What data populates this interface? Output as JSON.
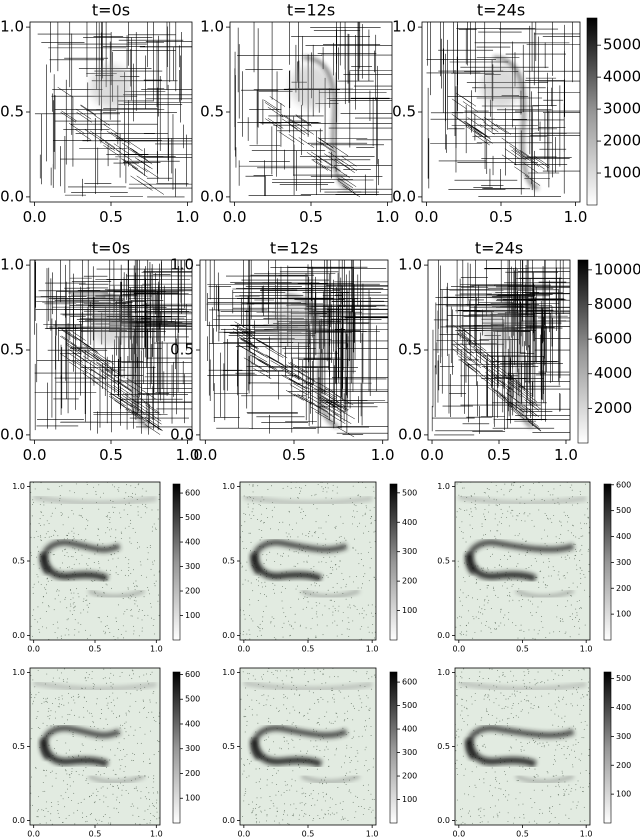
{
  "chart_data": [
    {
      "type": "image",
      "title": "t=0s",
      "xlim": [
        -0.03,
        1.03
      ],
      "ylim": [
        -0.03,
        1.03
      ],
      "xticks": [
        {
          "value": 0,
          "label": "0.0"
        },
        {
          "value": 0.5,
          "label": "0.5"
        },
        {
          "value": 1,
          "label": "1.0"
        }
      ],
      "yticks": [
        {
          "value": 0,
          "label": "0.0"
        },
        {
          "value": 0.5,
          "label": "0.5"
        },
        {
          "value": 1,
          "label": "1.0"
        }
      ]
    },
    {
      "type": "image",
      "title": "t=12s",
      "xlim": [
        -0.03,
        1.03
      ],
      "ylim": [
        -0.03,
        1.03
      ],
      "xticks": [
        {
          "value": 0,
          "label": "0.0"
        },
        {
          "value": 0.5,
          "label": "0.5"
        },
        {
          "value": 1,
          "label": "1.0"
        }
      ],
      "yticks": [
        {
          "value": 0,
          "label": "0.0"
        },
        {
          "value": 0.5,
          "label": "0.5"
        },
        {
          "value": 1,
          "label": "1.0"
        }
      ]
    },
    {
      "type": "image",
      "title": "t=24s",
      "xlim": [
        -0.03,
        1.03
      ],
      "ylim": [
        -0.03,
        1.03
      ],
      "xticks": [
        {
          "value": 0,
          "label": "0.0"
        },
        {
          "value": 0.5,
          "label": "0.5"
        },
        {
          "value": 1,
          "label": "1.0"
        }
      ],
      "yticks": [
        {
          "value": 0,
          "label": "0.0"
        },
        {
          "value": 0.5,
          "label": "0.5"
        },
        {
          "value": 1,
          "label": "1.0"
        }
      ],
      "colorbar": {
        "clim": [
          0,
          5850
        ],
        "cticks": [
          1000,
          2000,
          3000,
          4000,
          5000
        ]
      }
    },
    {
      "type": "image",
      "title": "t=0s",
      "xlim": [
        -0.03,
        1.03
      ],
      "ylim": [
        -0.03,
        1.03
      ],
      "xticks": [
        {
          "value": 0,
          "label": "0.0"
        },
        {
          "value": 0.5,
          "label": "0.5"
        },
        {
          "value": 1,
          "label": "1.0"
        }
      ],
      "yticks": [
        {
          "value": 0,
          "label": "0.0"
        },
        {
          "value": 0.5,
          "label": "0.5"
        },
        {
          "value": 1,
          "label": "1.0"
        }
      ]
    },
    {
      "type": "image",
      "title": "t=12s",
      "xlim": [
        -0.03,
        1.03
      ],
      "ylim": [
        -0.03,
        1.03
      ],
      "xticks": [
        {
          "value": 0,
          "label": "0.0"
        },
        {
          "value": 0.5,
          "label": "0.5"
        },
        {
          "value": 1,
          "label": "1.0"
        }
      ],
      "yticks": [
        {
          "value": 0,
          "label": "0.0"
        },
        {
          "value": 0.5,
          "label": "0.5"
        },
        {
          "value": 1,
          "label": "1.0"
        }
      ]
    },
    {
      "type": "image",
      "title": "t=24s",
      "xlim": [
        -0.03,
        1.03
      ],
      "ylim": [
        -0.03,
        1.03
      ],
      "xticks": [
        {
          "value": 0,
          "label": "0.0"
        },
        {
          "value": 0.5,
          "label": "0.5"
        },
        {
          "value": 1,
          "label": "1.0"
        }
      ],
      "yticks": [
        {
          "value": 0,
          "label": "0.0"
        },
        {
          "value": 0.5,
          "label": "0.5"
        },
        {
          "value": 1,
          "label": "1.0"
        }
      ],
      "colorbar": {
        "clim": [
          0,
          10570
        ],
        "cticks": [
          2000,
          4000,
          6000,
          8000,
          10000
        ]
      }
    },
    {
      "type": "image",
      "xlim": [
        -0.03,
        1.03
      ],
      "ylim": [
        -0.03,
        1.03
      ],
      "xticks": [
        {
          "value": 0,
          "label": "0.0"
        },
        {
          "value": 0.5,
          "label": "0.5"
        },
        {
          "value": 1,
          "label": "1.0"
        }
      ],
      "yticks": [
        {
          "value": 0,
          "label": "0.0"
        },
        {
          "value": 0.5,
          "label": "0.5"
        },
        {
          "value": 1,
          "label": "1.0"
        }
      ],
      "colorbar": {
        "clim": [
          0,
          637
        ],
        "cticks": [
          100,
          200,
          300,
          400,
          500,
          600
        ]
      }
    },
    {
      "type": "image",
      "xlim": [
        -0.03,
        1.03
      ],
      "ylim": [
        -0.03,
        1.03
      ],
      "xticks": [
        {
          "value": 0,
          "label": "0.0"
        },
        {
          "value": 0.5,
          "label": "0.5"
        },
        {
          "value": 1,
          "label": "1.0"
        }
      ],
      "yticks": [
        {
          "value": 0,
          "label": "0.0"
        },
        {
          "value": 0.5,
          "label": "0.5"
        },
        {
          "value": 1,
          "label": "1.0"
        }
      ],
      "colorbar": {
        "clim": [
          0,
          530
        ],
        "cticks": [
          100,
          200,
          300,
          400,
          500
        ]
      }
    },
    {
      "type": "image",
      "xlim": [
        -0.03,
        1.03
      ],
      "ylim": [
        -0.03,
        1.03
      ],
      "xticks": [
        {
          "value": 0,
          "label": "0.0"
        },
        {
          "value": 0.5,
          "label": "0.5"
        },
        {
          "value": 1,
          "label": "1.0"
        }
      ],
      "yticks": [
        {
          "value": 0,
          "label": "0.0"
        },
        {
          "value": 0.5,
          "label": "0.5"
        },
        {
          "value": 1,
          "label": "1.0"
        }
      ],
      "colorbar": {
        "clim": [
          0,
          603
        ],
        "cticks": [
          100,
          200,
          300,
          400,
          500,
          600
        ]
      }
    },
    {
      "type": "image",
      "xlim": [
        -0.03,
        1.03
      ],
      "ylim": [
        -0.03,
        1.03
      ],
      "xticks": [
        {
          "value": 0,
          "label": "0.0"
        },
        {
          "value": 0.5,
          "label": "0.5"
        },
        {
          "value": 1,
          "label": "1.0"
        }
      ],
      "yticks": [
        {
          "value": 0,
          "label": "0.0"
        },
        {
          "value": 0.5,
          "label": "0.5"
        },
        {
          "value": 1,
          "label": "1.0"
        }
      ],
      "colorbar": {
        "clim": [
          0,
          610
        ],
        "cticks": [
          100,
          200,
          300,
          400,
          500,
          600
        ]
      }
    },
    {
      "type": "image",
      "xlim": [
        -0.03,
        1.03
      ],
      "ylim": [
        -0.03,
        1.03
      ],
      "xticks": [
        {
          "value": 0,
          "label": "0.0"
        },
        {
          "value": 0.5,
          "label": "0.5"
        },
        {
          "value": 1,
          "label": "1.0"
        }
      ],
      "yticks": [
        {
          "value": 0,
          "label": "0.0"
        },
        {
          "value": 0.5,
          "label": "0.5"
        },
        {
          "value": 1,
          "label": "1.0"
        }
      ],
      "colorbar": {
        "clim": [
          0,
          643
        ],
        "cticks": [
          100,
          200,
          300,
          400,
          500,
          600
        ]
      }
    },
    {
      "type": "image",
      "xlim": [
        -0.03,
        1.03
      ],
      "ylim": [
        -0.03,
        1.03
      ],
      "xticks": [
        {
          "value": 0,
          "label": "0.0"
        },
        {
          "value": 0.5,
          "label": "0.5"
        },
        {
          "value": 1,
          "label": "1.0"
        }
      ],
      "yticks": [
        {
          "value": 0,
          "label": "0.0"
        },
        {
          "value": 0.5,
          "label": "0.5"
        },
        {
          "value": 1,
          "label": "1.0"
        }
      ],
      "colorbar": {
        "clim": [
          0,
          523
        ],
        "cticks": [
          100,
          200,
          300,
          400,
          500
        ]
      }
    }
  ]
}
